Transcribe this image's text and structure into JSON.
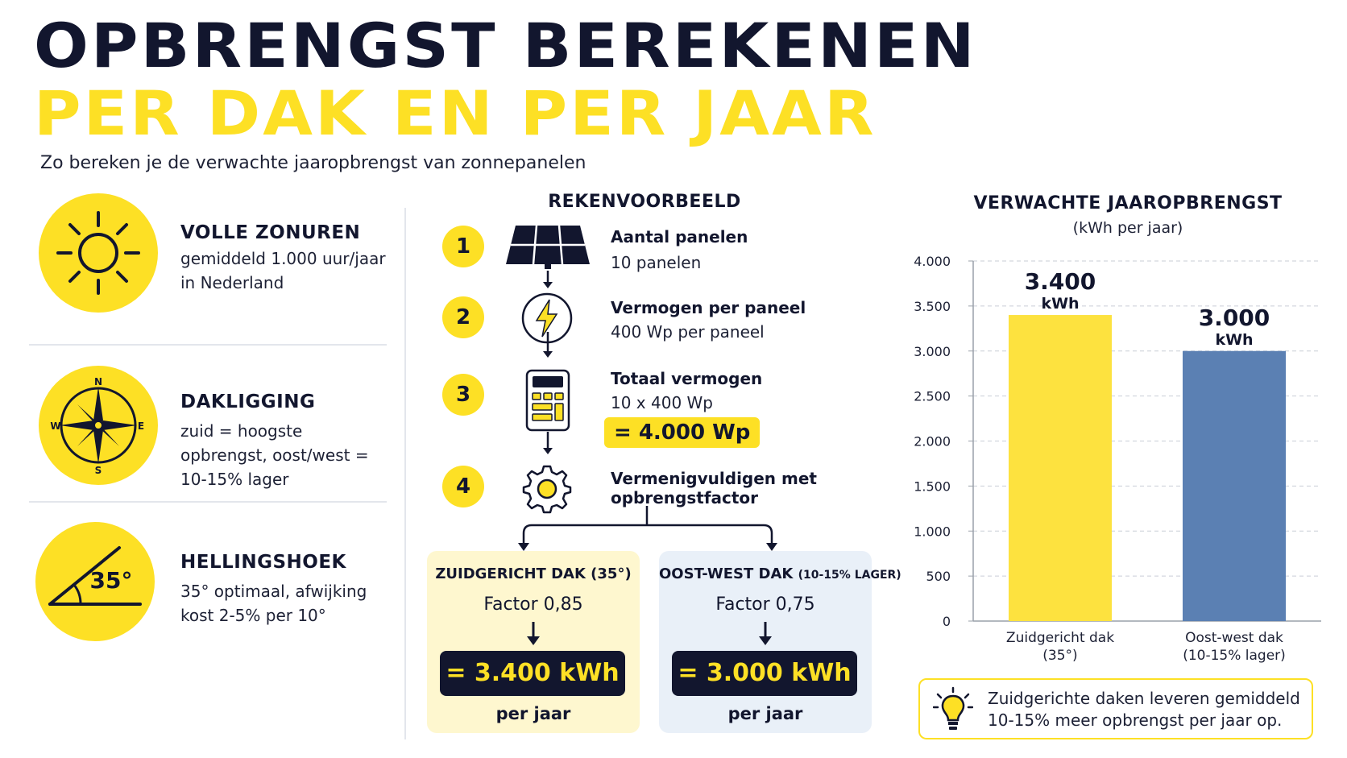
{
  "header": {
    "title_line1": "OPBRENGST BEREKENEN",
    "title_line2": "PER DAK EN PER JAAR",
    "subtitle": "Zo bereken je de verwachte jaaropbrengst van zonnepanelen"
  },
  "factors": [
    {
      "title": "VOLLE ZONUREN",
      "desc": "gemiddeld 1.000 uur/jaar in Nederland",
      "icon": "sun-icon"
    },
    {
      "title": "DAKLIGGING",
      "desc": "zuid = hoogste opbrengst, oost/west = 10-15% lager",
      "icon": "compass-icon",
      "compass": {
        "n": "N",
        "e": "E",
        "s": "S",
        "w": "W"
      }
    },
    {
      "title": "HELLINGSHOEK",
      "desc": "35° optimaal, afwijking kost 2-5% per 10°",
      "icon": "angle-icon",
      "angle_label": "35°"
    }
  ],
  "rekenvoorbeeld": {
    "title": "REKENVOORBEELD",
    "steps": [
      {
        "num": "1",
        "label": "Aantal panelen",
        "value": "10 panelen",
        "icon": "solar-panel-icon"
      },
      {
        "num": "2",
        "label": "Vermogen per paneel",
        "value": "400 Wp per paneel",
        "icon": "lightning-icon"
      },
      {
        "num": "3",
        "label": "Totaal vermogen",
        "value": "10 x 400 Wp",
        "highlight": "= 4.000 Wp",
        "icon": "calculator-icon"
      },
      {
        "num": "4",
        "label_line1": "Vermenigvuldigen met",
        "label_line2": "opbrengstfactor",
        "icon": "gear-icon"
      }
    ],
    "boxes": [
      {
        "heading": "ZUIDGERICHT DAK (35°)",
        "factor": "Factor 0,85",
        "result": "= 3.400 kWh",
        "period": "per jaar"
      },
      {
        "heading": "OOST-WEST DAK",
        "heading_note": "(10-15% LAGER)",
        "factor": "Factor 0,75",
        "result": "= 3.000 kWh",
        "period": "per jaar"
      }
    ]
  },
  "chart_data": {
    "type": "bar",
    "title": "VERWACHTE JAAROPBRENGST",
    "subtitle": "(kWh per jaar)",
    "categories": [
      [
        "Zuidgericht dak",
        "(35°)"
      ],
      [
        "Oost-west dak",
        "(10-15% lager)"
      ]
    ],
    "values": [
      3400,
      3000
    ],
    "value_labels": [
      [
        "3.400",
        "kWh"
      ],
      [
        "3.000",
        "kWh"
      ]
    ],
    "bar_colors": [
      "#fde23f",
      "#5b80b3"
    ],
    "ylim": [
      0,
      4000
    ],
    "yticks": [
      0,
      500,
      1000,
      1500,
      2000,
      2500,
      3000,
      3500,
      4000
    ],
    "ytick_labels": [
      "0",
      "500",
      "1.000",
      "1.500",
      "2.000",
      "2.500",
      "3.000",
      "3.500",
      "4.000"
    ],
    "grid": "dashed horizontal"
  },
  "tip": {
    "text": "Zuidgerichte daken leveren gemiddeld 10-15% meer opbrengst per jaar op.",
    "icon": "lightbulb-icon"
  },
  "colors": {
    "navy": "#12162e",
    "yellow": "#fde025",
    "blue": "#5b80b3"
  }
}
